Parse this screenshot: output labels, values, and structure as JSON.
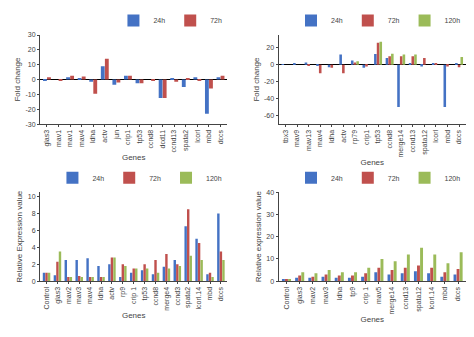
{
  "chart_data": [
    {
      "type": "bar",
      "categories": [
        "glas3",
        "mav1",
        "mav1",
        "mav4",
        "ldha",
        "actv",
        "jun",
        "crip1",
        "tp53",
        "ccnd8",
        "dcd11",
        "ccnd13",
        "spata2",
        "lcorl",
        "mbd",
        "dccs"
      ],
      "series": [
        {
          "name": "24h",
          "color": "#4472C4",
          "values": [
            -0.5,
            0.0,
            1.5,
            0.5,
            -1.5,
            9.0,
            -3.5,
            2.5,
            -2.5,
            0.0,
            -12.5,
            0.5,
            -5.0,
            1.5,
            -23.0,
            1.5
          ]
        },
        {
          "name": "72h",
          "color": "#C0504D",
          "values": [
            1.5,
            -0.5,
            2.5,
            2.0,
            -9.5,
            14.0,
            -2.0,
            2.5,
            -2.5,
            -0.5,
            -12.5,
            -1.5,
            0.5,
            -0.5,
            -6.0,
            2.5
          ]
        }
      ],
      "x_label": "Genes",
      "y_label": "Fold change",
      "ylim": [
        -30,
        30
      ],
      "yticks": [
        -30,
        -20,
        -10,
        0,
        10,
        20,
        30
      ],
      "legend": "upper right",
      "grid": false
    },
    {
      "type": "bar",
      "categories": [
        "tbx3",
        "mav9",
        "mav13",
        "mav4",
        "ldha",
        "actv",
        "rp79",
        "crip1",
        "tp53",
        "ccnd8",
        "merge14",
        "ccnd13",
        "spata12",
        "lcorl",
        "mbd",
        "dccs"
      ],
      "series": [
        {
          "name": "24h",
          "color": "#4472C4",
          "values": [
            0.5,
            2.0,
            2.5,
            -1.5,
            -3.0,
            12.0,
            5.0,
            -3.5,
            12.5,
            8.0,
            -50.0,
            2.0,
            -2.0,
            1.5,
            -50.0,
            1.0
          ]
        },
        {
          "name": "72h",
          "color": "#C0504D",
          "values": [
            0.0,
            0.0,
            -0.5,
            -10.0,
            -3.5,
            -10.0,
            2.5,
            -2.0,
            26.0,
            10.0,
            10.0,
            10.0,
            8.0,
            1.0,
            -2.0,
            -3.0
          ]
        },
        {
          "name": "120h",
          "color": "#9BBB59",
          "values": [
            0.0,
            0.0,
            0.0,
            0.0,
            0.0,
            0.0,
            4.0,
            0.0,
            27.0,
            13.0,
            12.0,
            12.0,
            0.0,
            0.0,
            0.0,
            9.0
          ]
        }
      ],
      "x_label": "Genes",
      "y_label": "Fold change",
      "ylim": [
        -70,
        35
      ],
      "yticks": [
        -60,
        -40,
        -20,
        0,
        20
      ],
      "legend": "upper right",
      "grid": false
    },
    {
      "type": "bar",
      "categories": [
        "Control",
        "glas3",
        "mav2",
        "mav3",
        "mav4",
        "ldha",
        "actv",
        "rp9",
        "crip 1",
        "tp53",
        "ccnd8",
        "merge4",
        "ccnd3",
        "spata2",
        "lcorl.14",
        "mbd",
        "dccs"
      ],
      "series": [
        {
          "name": "24h",
          "color": "#4472C4",
          "values": [
            1.0,
            0.7,
            2.5,
            2.5,
            2.7,
            1.8,
            2.0,
            0.5,
            1.0,
            1.3,
            0.8,
            1.7,
            2.5,
            6.5,
            5.0,
            0.8,
            8.0
          ]
        },
        {
          "name": "72h",
          "color": "#C0504D",
          "values": [
            1.0,
            2.3,
            0.5,
            0.6,
            0.5,
            0.5,
            2.8,
            2.0,
            1.5,
            2.0,
            2.5,
            3.2,
            2.0,
            8.5,
            4.5,
            1.0,
            3.5
          ]
        },
        {
          "name": "120h",
          "color": "#9BBB59",
          "values": [
            1.0,
            3.5,
            0.5,
            0.5,
            0.5,
            0.5,
            2.8,
            1.8,
            1.5,
            1.5,
            1.0,
            1.5,
            1.8,
            3.0,
            2.5,
            0.5,
            2.5
          ]
        }
      ],
      "x_label": "Genes",
      "y_label": "Relative Expression value",
      "ylim": [
        0,
        10.5
      ],
      "yticks": [
        0,
        2,
        4,
        6,
        8,
        10
      ],
      "legend": "upper right",
      "grid": false
    },
    {
      "type": "bar",
      "categories": [
        "Control",
        "glas3",
        "mav2",
        "mav3",
        "ldha",
        "tp9",
        "crip 1",
        "mav5",
        "merge14",
        "ccnd13",
        "spata12",
        "lcorl.14",
        "mbd",
        "dccs"
      ],
      "series": [
        {
          "name": "24h",
          "color": "#4472C4",
          "values": [
            1.0,
            1.5,
            1.5,
            2.0,
            1.5,
            1.5,
            2.0,
            4.0,
            3.0,
            3.5,
            4.5,
            3.5,
            2.0,
            3.0
          ]
        },
        {
          "name": "72h",
          "color": "#C0504D",
          "values": [
            1.0,
            2.5,
            2.0,
            3.0,
            2.5,
            2.5,
            3.5,
            6.0,
            5.0,
            6.0,
            7.0,
            6.0,
            4.0,
            5.5
          ]
        },
        {
          "name": "120h",
          "color": "#9BBB59",
          "values": [
            1.0,
            4.0,
            3.5,
            5.0,
            4.0,
            4.0,
            6.0,
            10.0,
            9.0,
            12.0,
            15.0,
            12.0,
            8.0,
            13.0
          ]
        }
      ],
      "x_label": "Genes",
      "y_label": "Relative expression value",
      "ylim": [
        0,
        40
      ],
      "yticks": [
        0,
        10,
        20,
        30,
        40
      ],
      "legend": "upper right",
      "grid": false
    }
  ]
}
